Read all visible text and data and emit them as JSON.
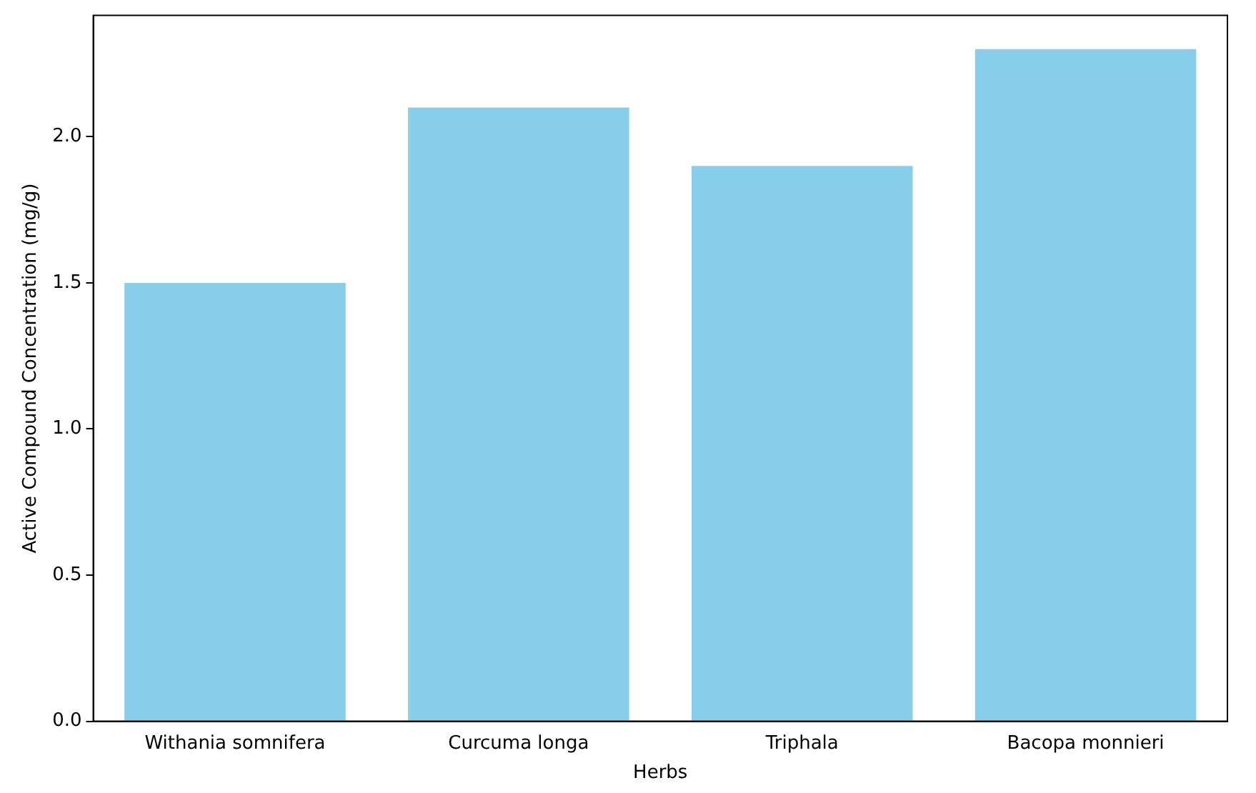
{
  "chart_data": {
    "type": "bar",
    "xlabel": "Herbs",
    "ylabel": "Active Compound Concentration (mg/g)",
    "categories": [
      "Withania somnifera",
      "Curcuma longa",
      "Triphala",
      "Bacopa monnieri"
    ],
    "values": [
      1.5,
      2.1,
      1.9,
      2.3
    ],
    "color": "#87ceeb",
    "ylim": [
      0,
      2.415
    ],
    "yticks": [
      {
        "value": 0,
        "label": "0.0"
      },
      0.5,
      {
        "value": 1,
        "label": "1.0"
      },
      1.5,
      {
        "value": 2,
        "label": "2.0"
      }
    ],
    "grid": false,
    "legend": false
  }
}
